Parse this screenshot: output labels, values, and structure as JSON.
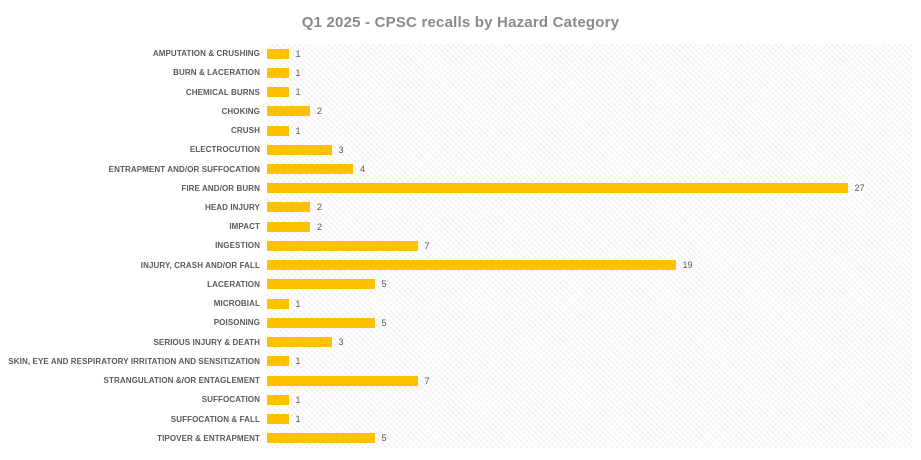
{
  "title": "Q1 2025 - CPSC recalls by Hazard Category",
  "colors": {
    "bar": "#FFC000",
    "title_text": "#8A8A8A",
    "category_label_text": "#595959",
    "value_label_text": "#595959",
    "plot_background": "#FFFFFF"
  },
  "chart_data": {
    "type": "bar",
    "orientation": "horizontal",
    "title": "Q1 2025 - CPSC recalls by Hazard Category",
    "categories": [
      "AMPUTATION & CRUSHING",
      "BURN & LACERATION",
      "CHEMICAL BURNS",
      "CHOKING",
      "CRUSH",
      "ELECTROCUTION",
      "ENTRAPMENT AND/OR SUFFOCATION",
      "FIRE AND/OR BURN",
      "HEAD INJURY",
      "IMPACT",
      "INGESTION",
      "INJURY, CRASH AND/OR FALL",
      "LACERATION",
      "MICROBIAL",
      "POISONING",
      "SERIOUS INJURY & DEATH",
      "SKIN, EYE AND RESPIRATORY IRRITATION AND SENSITIZATION",
      "STRANGULATION &/OR ENTAGLEMENT",
      "SUFFOCATION",
      "SUFFOCATION & FALL",
      "TIPOVER & ENTRAPMENT"
    ],
    "values": [
      1,
      1,
      1,
      2,
      1,
      3,
      4,
      27,
      2,
      2,
      7,
      19,
      5,
      1,
      5,
      3,
      1,
      7,
      1,
      1,
      5
    ],
    "xlabel": "",
    "ylabel": "",
    "xlim": [
      0,
      30
    ],
    "grid": false,
    "legend": false,
    "data_labels": true,
    "plot_background_pattern": "light-diagonal-hatch"
  }
}
